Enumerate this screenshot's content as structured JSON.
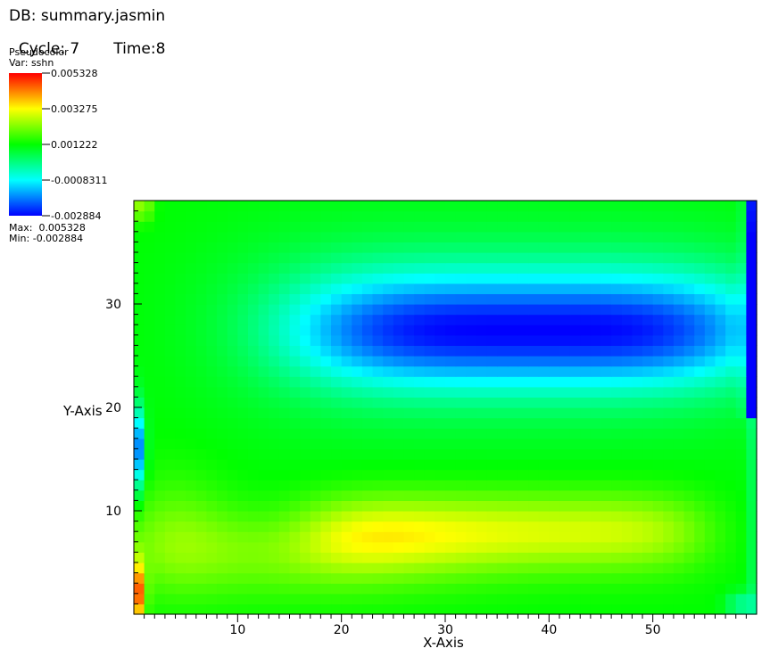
{
  "header": {
    "db": "DB: summary.jasmin",
    "cycle": "Cycle: 7",
    "time": "Time:8"
  },
  "legend": {
    "plot_type": "Pseudocolor",
    "var": "Var: sshn",
    "ticks": [
      "0.005328",
      "0.003275",
      "0.001222",
      "-0.0008311",
      "-0.002884"
    ],
    "max_label": "Max:  0.005328",
    "min_label": "Min: -0.002884",
    "colors": [
      "#ff0000",
      "#ffff00",
      "#00ff00",
      "#00ffff",
      "#0000ff"
    ]
  },
  "chart_data": {
    "type": "heatmap",
    "title": "",
    "xlabel": "X-Axis",
    "ylabel": "Y-Axis",
    "variable": "sshn",
    "xlim": [
      0,
      60
    ],
    "ylim": [
      0,
      40
    ],
    "vmin": -0.002884,
    "vmax": 0.005328,
    "x_ticks": [
      10,
      20,
      30,
      40,
      50
    ],
    "y_ticks": [
      10,
      20,
      30
    ],
    "features": [
      {
        "name": "low-ssh gyre",
        "x_center": 38,
        "y_center": 27.5,
        "value": -0.0028
      },
      {
        "name": "high-ssh band",
        "x_center": 40,
        "y_center": 8,
        "value": 0.0026
      },
      {
        "name": "western boundary max",
        "x_center": 0.2,
        "y_center": 2,
        "value": 0.0053
      },
      {
        "name": "western boundary min",
        "x_center": 0.2,
        "y_center": 16,
        "value": -0.0027
      }
    ]
  }
}
